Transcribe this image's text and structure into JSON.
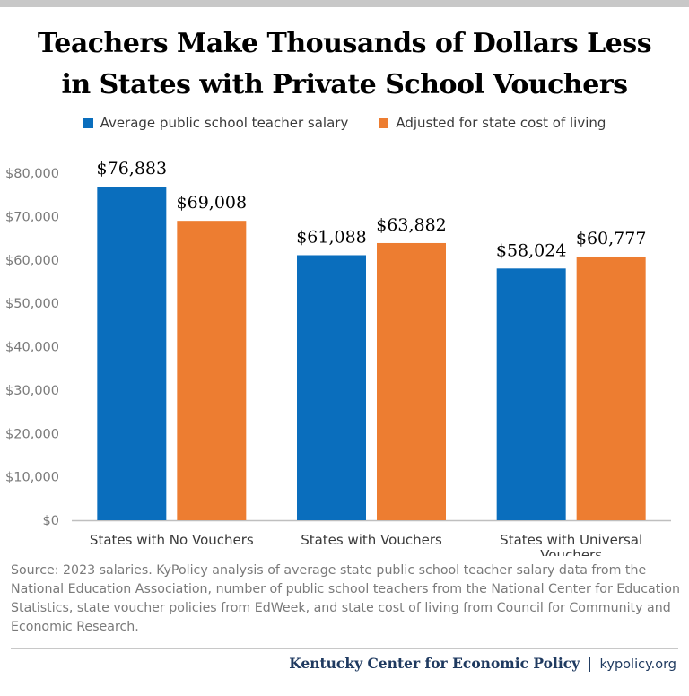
{
  "title_line1": "Teachers Make Thousands of Dollars Less",
  "title_line2": "in States with Private School Vouchers",
  "source_note": "Source: 2023 salaries. KyPolicy analysis of average state public school teacher salary data from the National Education Association, number of public school teachers from the National Center for Education Statistics, state voucher policies from EdWeek, and state cost of living from Council for Community and Economic Research.",
  "footer": {
    "org": "Kentucky Center for Economic Policy",
    "separator": "|",
    "url": "kypolicy.org"
  },
  "colors": {
    "series_1": "#0a6ebd",
    "series_2": "#ed7d31",
    "axis_text": "#7a7a7a",
    "gridline": "#bfbfbf"
  },
  "chart_data": {
    "type": "bar",
    "categories": [
      "States with No Vouchers",
      "States with Vouchers",
      "States with Universal Vouchers"
    ],
    "category_lines": [
      [
        "States with No Vouchers"
      ],
      [
        "States with Vouchers"
      ],
      [
        "States with Universal",
        "Vouchers"
      ]
    ],
    "series": [
      {
        "name": "Average public school teacher salary",
        "values": [
          76883,
          61088,
          58024
        ],
        "labels": [
          "$76,883",
          "$61,088",
          "$58,024"
        ]
      },
      {
        "name": "Adjusted for state cost of living",
        "values": [
          69008,
          63882,
          60777
        ],
        "labels": [
          "$69,008",
          "$63,882",
          "$60,777"
        ]
      }
    ],
    "ylim": [
      0,
      80000
    ],
    "yticks": [
      0,
      10000,
      20000,
      30000,
      40000,
      50000,
      60000,
      70000,
      80000
    ],
    "ytick_labels": [
      "$0",
      "$10,000",
      "$20,000",
      "$30,000",
      "$40,000",
      "$50,000",
      "$60,000",
      "$70,000",
      "$80,000"
    ],
    "legend_position": "top",
    "grid": false
  }
}
